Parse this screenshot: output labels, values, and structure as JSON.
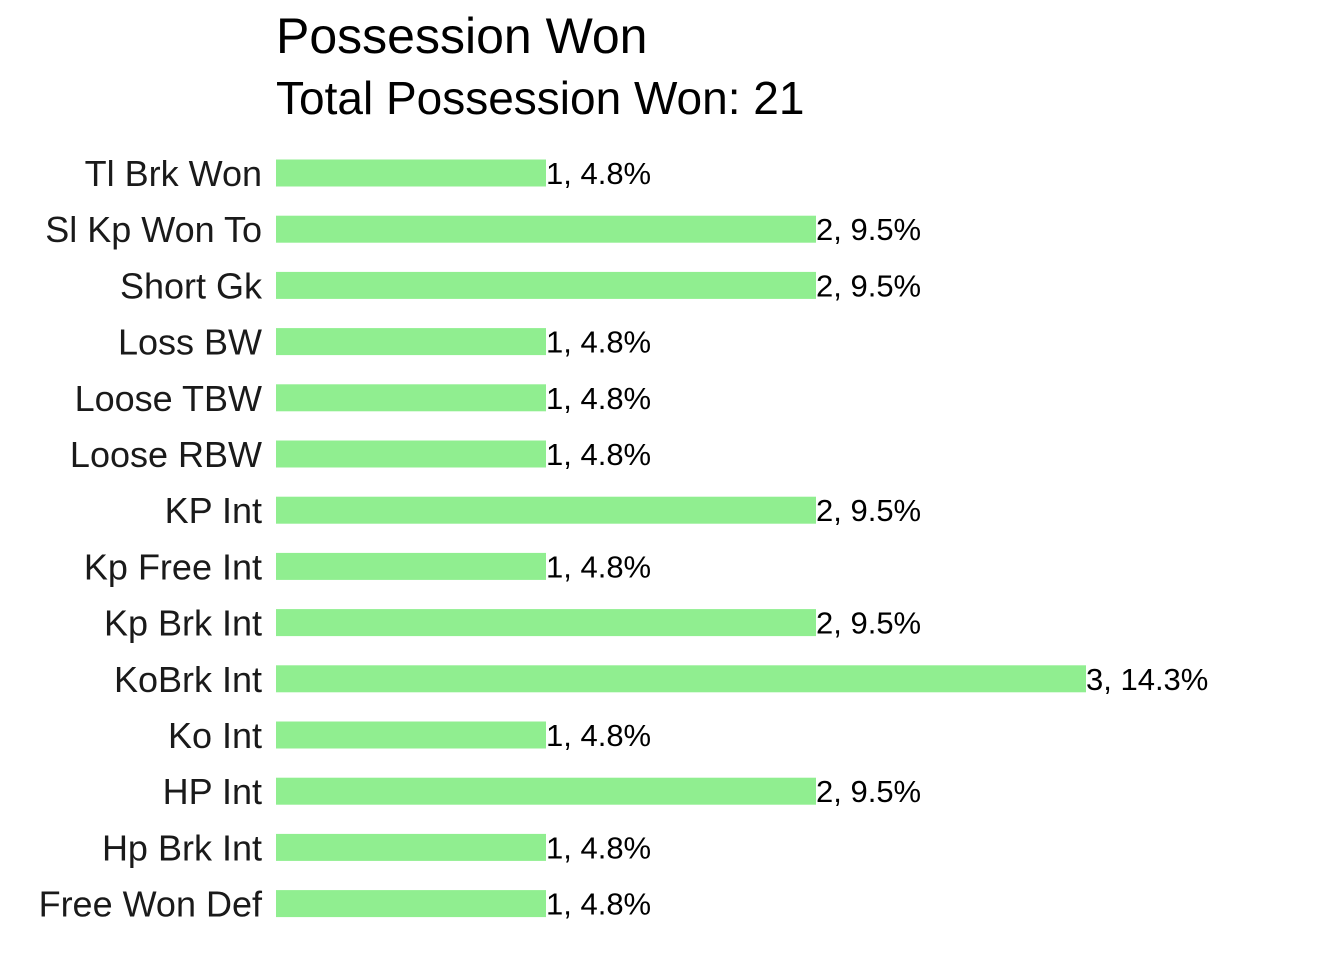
{
  "chart_data": {
    "type": "bar",
    "orientation": "horizontal",
    "title": "Possession Won",
    "subtitle": "Total Possession Won: 21",
    "xlabel": "",
    "ylabel": "",
    "categories": [
      "Tl Brk Won",
      "Sl Kp Won To",
      "Short Gk",
      "Loss BW",
      "Loose TBW",
      "Loose RBW",
      "KP Int",
      "Kp Free Int",
      "Kp Brk Int",
      "KoBrk Int",
      "Ko Int",
      "HP Int",
      "Hp Brk Int",
      "Free Won Def"
    ],
    "values": [
      1,
      2,
      2,
      1,
      1,
      1,
      2,
      1,
      2,
      3,
      1,
      2,
      1,
      1
    ],
    "data_labels": [
      "1, 4.8%",
      "2, 9.5%",
      "2, 9.5%",
      "1, 4.8%",
      "1, 4.8%",
      "1, 4.8%",
      "2, 9.5%",
      "1, 4.8%",
      "2, 9.5%",
      "3, 14.3%",
      "1, 4.8%",
      "2, 9.5%",
      "1, 4.8%",
      "1, 4.8%"
    ],
    "bar_color": "#90EE90",
    "grid": false,
    "legend": "none"
  }
}
